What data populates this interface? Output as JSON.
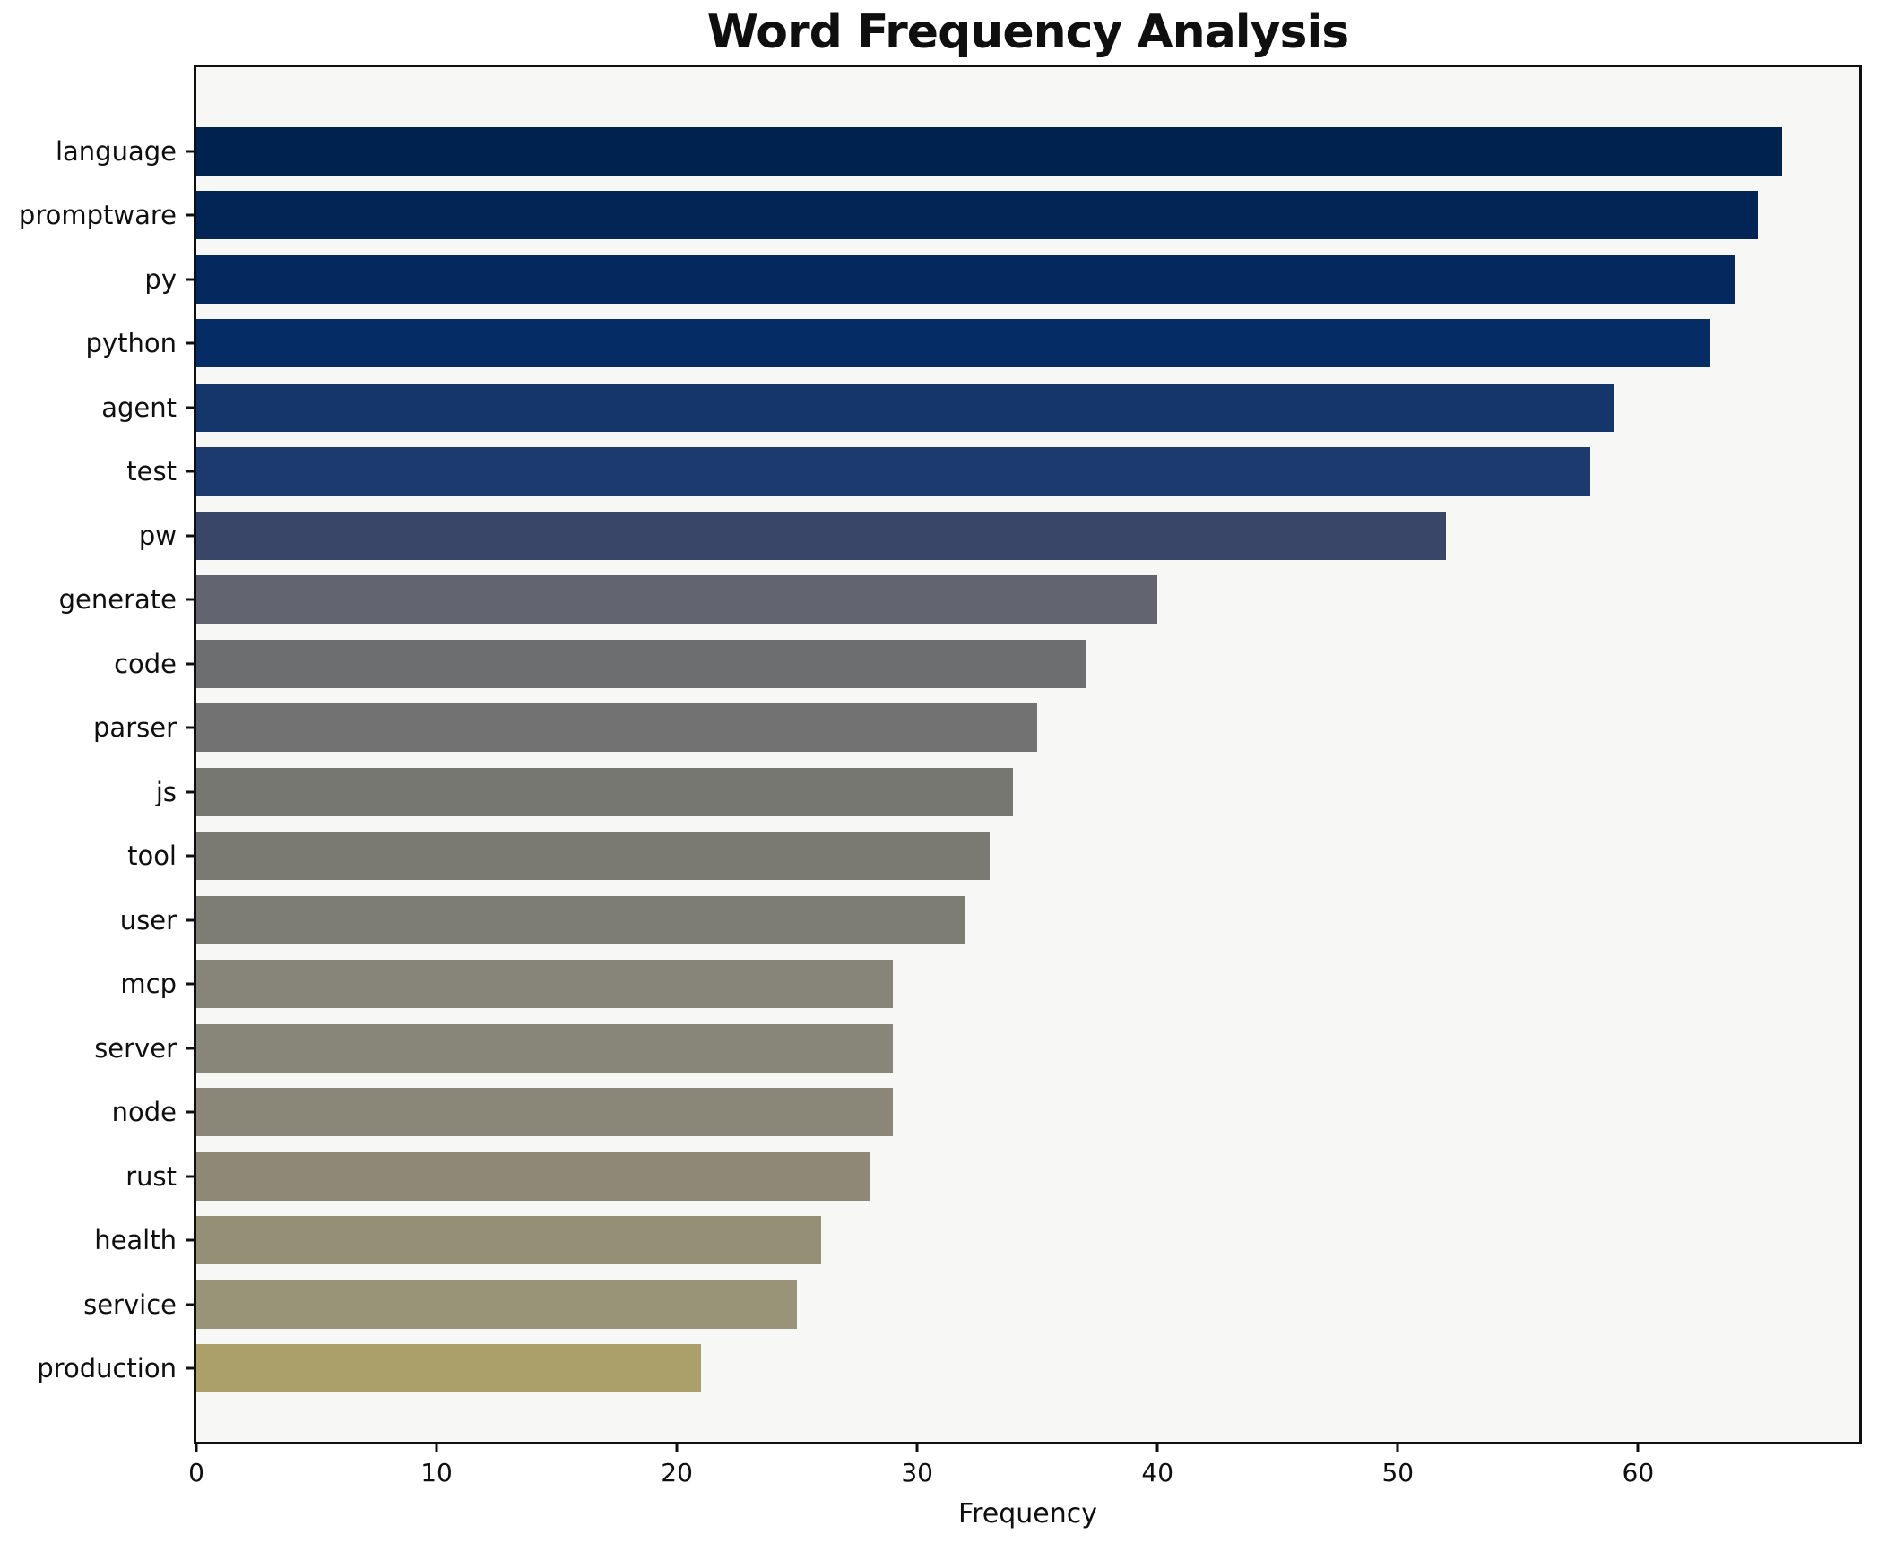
{
  "title": "Word Frequency Analysis",
  "chart_data": {
    "type": "bar",
    "orientation": "horizontal",
    "title": "Word Frequency Analysis",
    "xlabel": "Frequency",
    "ylabel": "",
    "categories": [
      "language",
      "promptware",
      "py",
      "python",
      "agent",
      "test",
      "pw",
      "generate",
      "code",
      "parser",
      "js",
      "tool",
      "user",
      "mcp",
      "server",
      "node",
      "rust",
      "health",
      "service",
      "production"
    ],
    "values": [
      66,
      65,
      64,
      63,
      59,
      58,
      52,
      40,
      37,
      35,
      34,
      33,
      32,
      29,
      29,
      29,
      28,
      26,
      25,
      21
    ],
    "bar_colors": [
      "#00224f",
      "#022556",
      "#03295e",
      "#052c64",
      "#14366b",
      "#1c3a6e",
      "#3a4668",
      "#62656f",
      "#6c6e70",
      "#717271",
      "#767770",
      "#7a7a72",
      "#7e7d73",
      "#87857a",
      "#888678",
      "#8a8778",
      "#8d8976",
      "#939076",
      "#999377",
      "#aba069"
    ],
    "xlim": [
      0,
      69.2
    ],
    "xticks": [
      0,
      10,
      20,
      30,
      40,
      50,
      60
    ],
    "grid": false,
    "legend": "none",
    "plot_background": "#f7f7f5",
    "figure_background": "#ffffff",
    "spine_color": "#0f0f0f"
  }
}
